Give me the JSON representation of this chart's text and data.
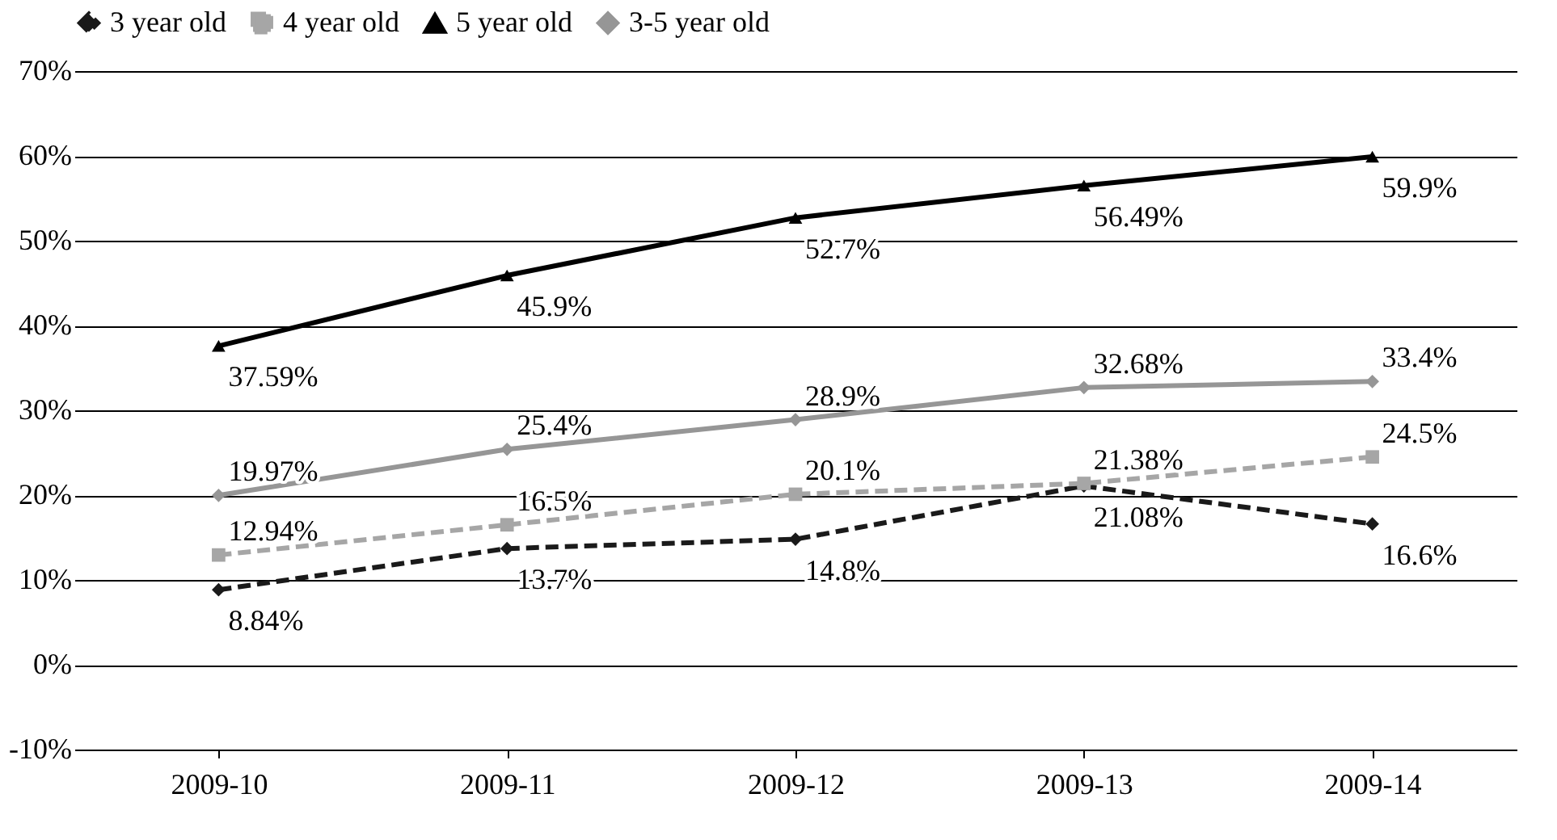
{
  "chart_data": {
    "type": "line",
    "categories": [
      "2009-10",
      "2009-11",
      "2009-12",
      "2009-13",
      "2009-14"
    ],
    "ylim": [
      -10,
      70
    ],
    "yticks": [
      {
        "value": -10,
        "label": "-10%"
      },
      {
        "value": 0,
        "label": "0%"
      },
      {
        "value": 10,
        "label": "10%"
      },
      {
        "value": 20,
        "label": "20%"
      },
      {
        "value": 30,
        "label": "30%"
      },
      {
        "value": 40,
        "label": "40%"
      },
      {
        "value": 50,
        "label": "50%"
      },
      {
        "value": 60,
        "label": "60%"
      },
      {
        "value": 70,
        "label": "70%"
      }
    ],
    "grid": "y",
    "legend": "top",
    "series": [
      {
        "name": "3 year old",
        "color": "#1a1a1a",
        "marker": "diamond",
        "line_style": "dashed",
        "values": [
          8.84,
          13.7,
          14.8,
          21.08,
          16.6
        ],
        "value_labels": [
          "8.84%",
          "13.7%",
          "14.8%",
          "21.08%",
          "16.6%"
        ]
      },
      {
        "name": "4 year old",
        "color": "#a6a6a6",
        "marker": "square",
        "line_style": "dashed",
        "values": [
          12.94,
          16.5,
          20.1,
          21.38,
          24.5
        ],
        "value_labels": [
          "12.94%",
          "16.5%",
          "20.1%",
          "21.38%",
          "24.5%"
        ]
      },
      {
        "name": "5 year old",
        "color": "#000000",
        "marker": "triangle",
        "line_style": "solid",
        "values": [
          37.59,
          45.9,
          52.7,
          56.49,
          59.9
        ],
        "value_labels": [
          "37.59%",
          "45.9%",
          "52.7%",
          "56.49%",
          "59.9%"
        ]
      },
      {
        "name": "3-5 year old",
        "color": "#969696",
        "marker": "diamond",
        "line_style": "solid",
        "values": [
          19.97,
          25.4,
          28.9,
          32.68,
          33.4
        ],
        "value_labels": [
          "19.97%",
          "25.4%",
          "28.9%",
          "32.68%",
          "33.4%"
        ]
      }
    ]
  }
}
